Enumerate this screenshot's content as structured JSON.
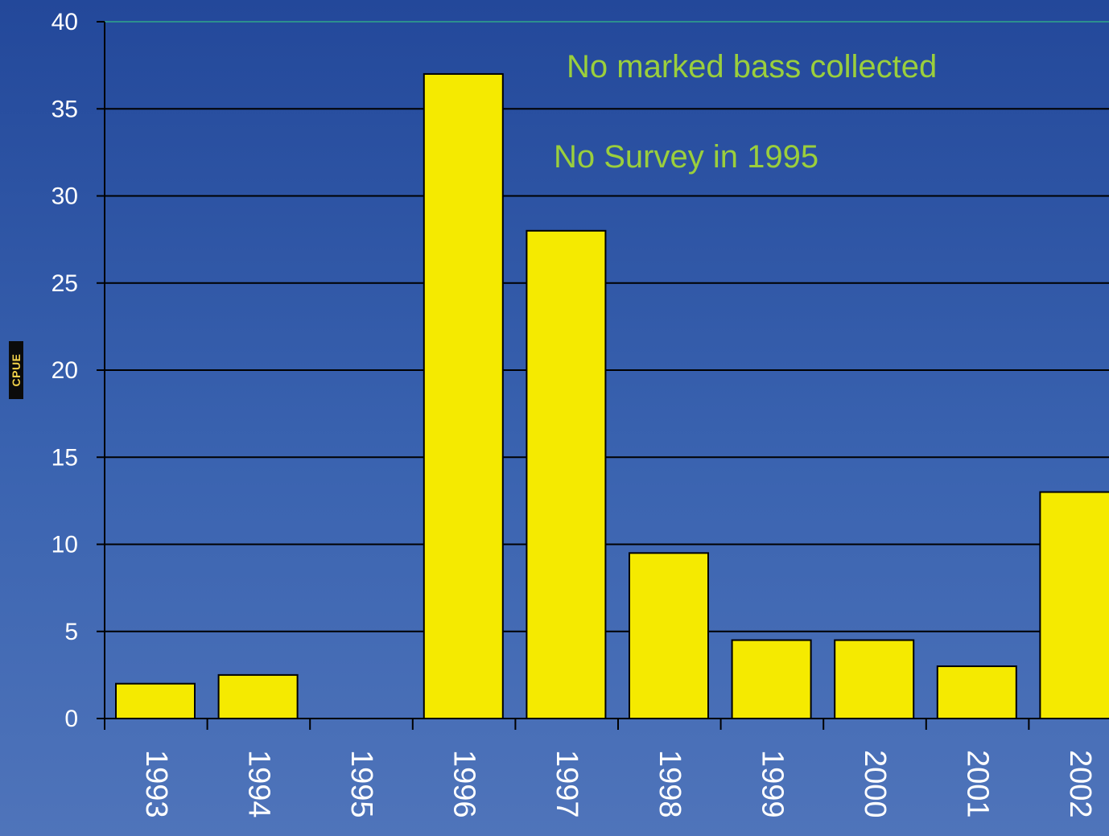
{
  "chart_data": {
    "type": "bar",
    "title": "",
    "xlabel": "",
    "ylabel": "CPUE",
    "ylim": [
      0,
      40
    ],
    "yticks": [
      0,
      5,
      10,
      15,
      20,
      25,
      30,
      35,
      40
    ],
    "grid": true,
    "categories": [
      "1993",
      "1994",
      "1995",
      "1996",
      "1997",
      "1998",
      "1999",
      "2000",
      "2001",
      "2002"
    ],
    "values": [
      2,
      2.5,
      null,
      37,
      28,
      9.5,
      4.5,
      4.5,
      3,
      13
    ],
    "annotations": [
      "No marked bass collected",
      "No Survey in 1995"
    ],
    "colors": {
      "bar_fill": "#f5ea00",
      "bar_stroke": "#000000",
      "gridline": "#000000",
      "axis_text": "#ffffff",
      "annotation_text": "#9bcf3c",
      "top_line": "#2fa88a",
      "ylabel_text": "#f3d24a"
    }
  }
}
